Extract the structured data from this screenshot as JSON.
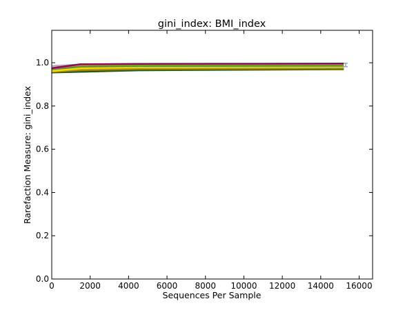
{
  "chart_data": {
    "type": "line",
    "title": "gini_index: BMI_index",
    "xlabel": "Sequences Per Sample",
    "ylabel": "Rarefaction Measure: gini_index",
    "xlim": [
      0,
      16700
    ],
    "ylim": [
      0.0,
      1.15
    ],
    "xticks": [
      "0",
      "2000",
      "4000",
      "6000",
      "8000",
      "10000",
      "12000",
      "14000",
      "16000"
    ],
    "yticks": [
      "0.0",
      "0.2",
      "0.4",
      "0.6",
      "0.8",
      "1.0"
    ],
    "grid": false,
    "legend": "none",
    "series": [
      {
        "color": "#2f4f2f",
        "x": [
          0,
          1500,
          4500,
          15200
        ],
        "y": [
          0.955,
          0.958,
          0.965,
          0.97
        ]
      },
      {
        "color": "#808000",
        "x": [
          0,
          1500,
          4500,
          15200
        ],
        "y": [
          0.958,
          0.965,
          0.97,
          0.973
        ]
      },
      {
        "color": "#b5a642",
        "x": [
          0,
          1500,
          4500,
          15200
        ],
        "y": [
          0.96,
          0.97,
          0.975,
          0.978
        ]
      },
      {
        "color": "#f0e000",
        "x": [
          0,
          1500,
          4500,
          15200
        ],
        "y": [
          0.962,
          0.975,
          0.98,
          0.982
        ]
      },
      {
        "color": "#ffd700",
        "x": [
          0,
          1500,
          4500,
          15200
        ],
        "y": [
          0.965,
          0.978,
          0.982,
          0.985
        ]
      },
      {
        "color": "#c8a2c8",
        "x": [
          0,
          1500,
          4500,
          15200
        ],
        "y": [
          0.985,
          0.992,
          0.995,
          0.995
        ]
      },
      {
        "color": "#9acd32",
        "x": [
          0,
          1500,
          4500,
          15200
        ],
        "y": [
          0.975,
          0.985,
          0.988,
          0.99
        ]
      },
      {
        "color": "#6b8e23",
        "x": [
          0,
          1500,
          4500,
          15200
        ],
        "y": [
          0.97,
          0.982,
          0.985,
          0.986
        ]
      },
      {
        "color": "#8b0a50",
        "x": [
          0,
          1500,
          4500,
          15200
        ],
        "y": [
          0.975,
          0.993,
          0.995,
          0.996
        ]
      }
    ],
    "error_bars": [
      {
        "color": "#9aa6c8",
        "x": 15300,
        "y": 0.99,
        "err": 0.008
      }
    ]
  }
}
